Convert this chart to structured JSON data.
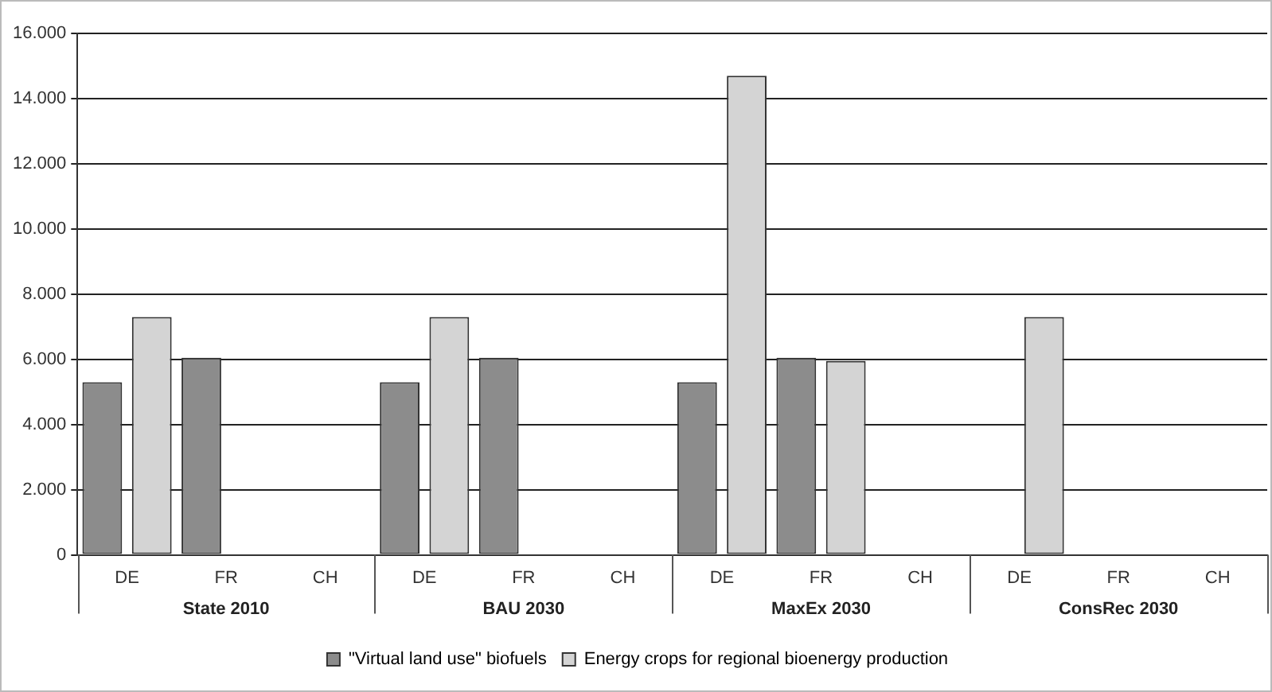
{
  "chart_data": {
    "type": "bar",
    "categories": [
      "DE",
      "FR",
      "CH",
      "DE",
      "FR",
      "CH",
      "DE",
      "FR",
      "CH",
      "DE",
      "FR",
      "CH"
    ],
    "series": [
      {
        "name": "\"Virtual land use\" biofuels",
        "color": "#8c8c8c",
        "values": [
          5300,
          6050,
          null,
          5300,
          6050,
          null,
          5300,
          6050,
          null,
          null,
          null,
          null
        ]
      },
      {
        "name": "Energy crops for regional bioenergy production",
        "color": "#d4d4d4",
        "values": [
          7300,
          null,
          null,
          7300,
          null,
          null,
          14700,
          5950,
          null,
          7300,
          null,
          null
        ]
      }
    ],
    "annotations": [
      "State 2010",
      "BAU 2030",
      "MaxEx 2030",
      "ConsRec 2030"
    ],
    "ylim": [
      0,
      16000
    ],
    "yticks": [
      {
        "value": 0,
        "label": "0"
      },
      {
        "value": 2000,
        "label": "2.000"
      },
      {
        "value": 4000,
        "label": "4.000"
      },
      {
        "value": 6000,
        "label": "6.000"
      },
      {
        "value": 8000,
        "label": "8.000"
      },
      {
        "value": 10000,
        "label": "10.000"
      },
      {
        "value": 12000,
        "label": "12.000"
      },
      {
        "value": 14000,
        "label": "14.000"
      },
      {
        "value": 16000,
        "label": "16.000"
      }
    ],
    "grid": "y",
    "legend": "bottom"
  }
}
